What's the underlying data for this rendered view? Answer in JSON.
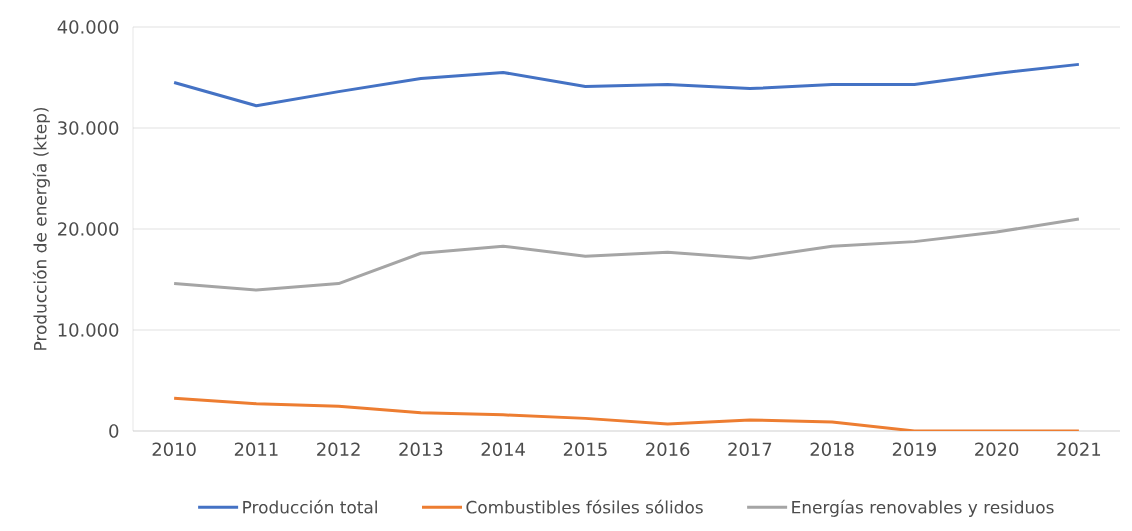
{
  "chart_data": {
    "type": "line",
    "ylabel": "Producción de energía (ktep)",
    "categories": [
      "2010",
      "2011",
      "2012",
      "2013",
      "2014",
      "2015",
      "2016",
      "2017",
      "2018",
      "2019",
      "2020",
      "2021"
    ],
    "series": [
      {
        "name": "Producción total",
        "color": "#4472c4",
        "values": [
          34500,
          32200,
          33600,
          34900,
          35500,
          34100,
          34300,
          33900,
          34300,
          34300,
          35400,
          36300
        ]
      },
      {
        "name": "Combustibles fósiles sólidos",
        "color": "#ed7d31",
        "values": [
          3250,
          2700,
          2450,
          1800,
          1600,
          1250,
          700,
          1100,
          900,
          0,
          0,
          0
        ]
      },
      {
        "name": "Energías renovables y residuos",
        "color": "#a5a5a5",
        "values": [
          14600,
          13950,
          14600,
          17600,
          18300,
          17300,
          17700,
          17100,
          18300,
          18750,
          19700,
          21000
        ]
      }
    ],
    "ylim": [
      0,
      40000
    ],
    "yticks": [
      0,
      {
        "value": 10000,
        "label": "10.000"
      },
      {
        "value": 20000,
        "label": "20.000"
      },
      {
        "value": 30000,
        "label": "30.000"
      },
      {
        "value": 40000,
        "label": "40.000"
      }
    ],
    "grid": "y",
    "legend": "bottom"
  }
}
